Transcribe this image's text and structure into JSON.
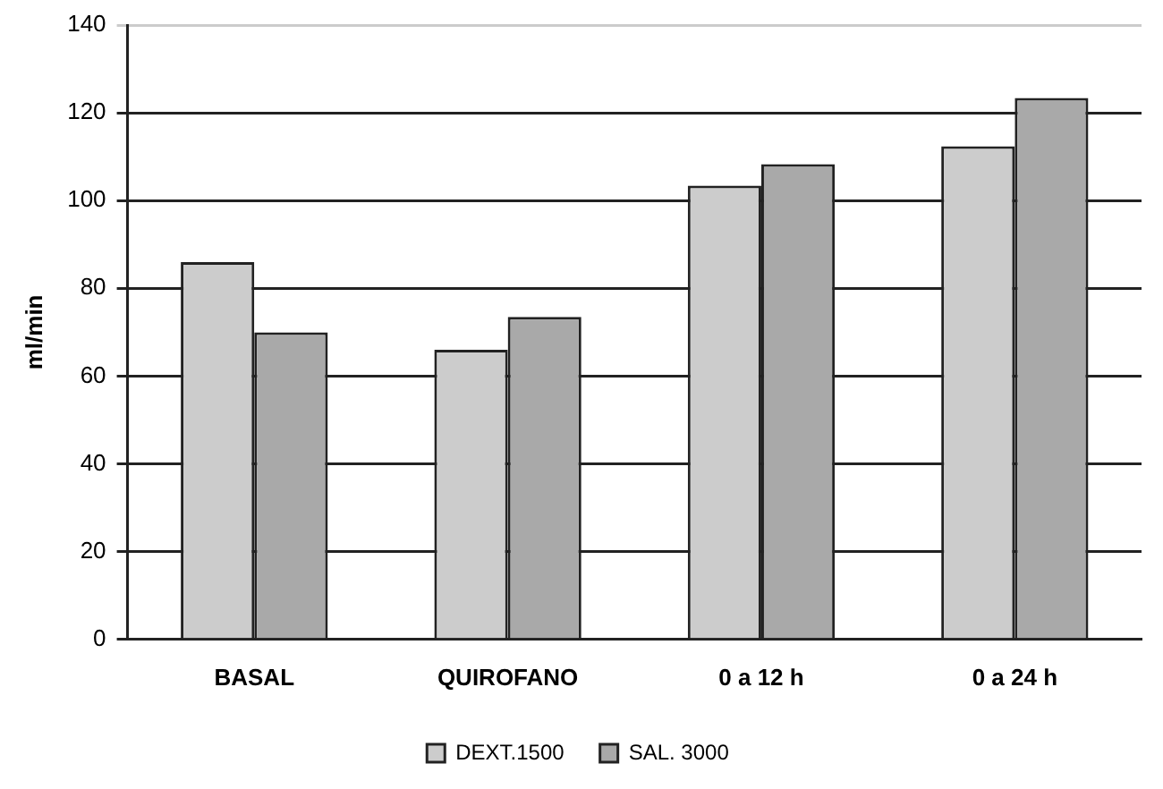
{
  "chart_data": {
    "type": "bar",
    "ylabel": "ml/min",
    "categories": [
      "BASAL",
      "QUIROFANO",
      "0 a 12 h",
      "0 a 24 h"
    ],
    "series": [
      {
        "name": "DEXT.1500",
        "color": "#cccccc",
        "values": [
          86,
          66,
          103.4,
          112.4
        ]
      },
      {
        "name": "SAL. 3000",
        "color": "#a9a9a9",
        "values": [
          70,
          73.5,
          108.3,
          123.4
        ]
      }
    ],
    "ylim": [
      0,
      140
    ],
    "yticks": [
      0,
      20,
      40,
      60,
      80,
      100,
      120,
      140
    ],
    "grid": "y",
    "legend": "bottom"
  }
}
